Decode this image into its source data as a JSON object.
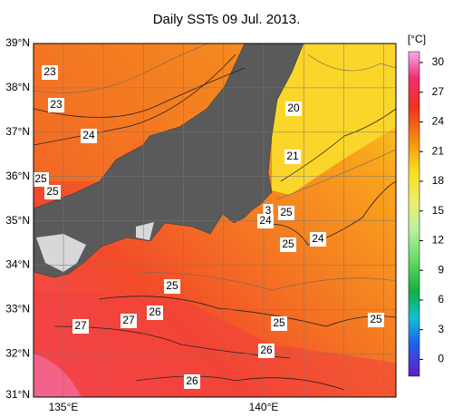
{
  "title": "Daily SSTs 09 Jul. 2013.",
  "lat_labels": [
    "39°N",
    "38°N",
    "37°N",
    "36°N",
    "35°N",
    "34°N",
    "33°N",
    "32°N",
    "31°N"
  ],
  "lon_labels": [
    "135°E",
    "140°E"
  ],
  "colorbar": {
    "unit": "[°C]",
    "ticks": [
      30,
      27,
      24,
      21,
      18,
      15,
      12,
      9,
      6,
      3,
      0
    ]
  },
  "contour_labels": [
    23,
    23,
    24,
    25,
    25,
    20,
    21,
    3,
    24,
    25,
    24,
    25,
    25,
    27,
    27,
    26,
    25,
    25,
    26,
    26
  ]
}
